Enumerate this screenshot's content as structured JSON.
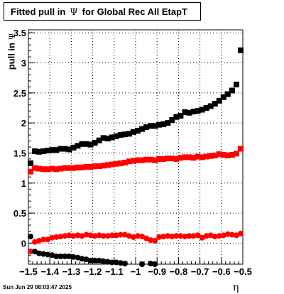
{
  "title": {
    "prefix": "Fitted pull in",
    "symbol": "Ψ",
    "suffix": "for Global Rec All EtapT"
  },
  "axis": {
    "ylabel_text": "pull in",
    "ylabel_symbol": "Ψ",
    "xlabel": "η"
  },
  "timestamp": "Sun Jun 29 08:03:47 2025",
  "colors": {
    "black_series": "#000000",
    "red_series": "#ff0000",
    "grid": "#000000"
  },
  "chart_data": {
    "type": "scatter",
    "title": "Fitted pull in Ψ for Global Rec All EtapT",
    "xlabel": "η",
    "ylabel": "pull in Ψ",
    "xlim": [
      -1.5,
      -0.5
    ],
    "ylim": [
      -0.35,
      3.55
    ],
    "grid": true,
    "xticks": [
      -1.5,
      -1.4,
      -1.3,
      -1.2,
      -1.1,
      -1,
      -0.9,
      -0.8,
      -0.7,
      -0.6,
      -0.5
    ],
    "xtick_labels": [
      "−1.5",
      "−1.4",
      "−1.3",
      "−1.2",
      "−1.1",
      "−1",
      "−0.9",
      "−0.8",
      "−0.7",
      "−0.6",
      "−0.5"
    ],
    "yticks": [
      0,
      0.5,
      1,
      1.5,
      2,
      2.5,
      3,
      3.5
    ],
    "ytick_labels": [
      "0",
      "0.5",
      "1",
      "1.5",
      "2",
      "2.5",
      "3",
      "3.5"
    ],
    "x": [
      -1.49,
      -1.47,
      -1.45,
      -1.43,
      -1.41,
      -1.39,
      -1.37,
      -1.35,
      -1.33,
      -1.31,
      -1.29,
      -1.27,
      -1.25,
      -1.23,
      -1.21,
      -1.19,
      -1.17,
      -1.15,
      -1.13,
      -1.11,
      -1.09,
      -1.07,
      -1.05,
      -1.03,
      -1.01,
      -0.99,
      -0.97,
      -0.95,
      -0.93,
      -0.91,
      -0.89,
      -0.87,
      -0.85,
      -0.83,
      -0.81,
      -0.79,
      -0.77,
      -0.75,
      -0.73,
      -0.71,
      -0.69,
      -0.67,
      -0.65,
      -0.63,
      -0.61,
      -0.59,
      -0.57,
      -0.55,
      -0.53,
      -0.51
    ],
    "series": [
      {
        "marker": "square",
        "color": "#000000",
        "values": [
          1.33,
          1.53,
          1.52,
          1.53,
          1.54,
          1.55,
          1.55,
          1.57,
          1.57,
          1.56,
          1.59,
          1.62,
          1.65,
          1.65,
          1.64,
          1.67,
          1.71,
          1.75,
          1.74,
          1.76,
          1.78,
          1.8,
          1.81,
          1.82,
          1.85,
          1.87,
          1.9,
          1.93,
          1.95,
          1.95,
          1.97,
          1.98,
          2.0,
          2.05,
          2.1,
          2.12,
          2.18,
          2.17,
          2.19,
          2.2,
          2.22,
          2.25,
          2.28,
          2.32,
          2.37,
          2.43,
          2.48,
          2.54,
          2.64,
          3.21
        ]
      },
      {
        "marker": "square",
        "color": "#ff0000",
        "values": [
          1.19,
          1.25,
          1.24,
          1.23,
          1.23,
          1.24,
          1.23,
          1.24,
          1.25,
          1.25,
          1.25,
          1.26,
          1.26,
          1.27,
          1.27,
          1.28,
          1.28,
          1.29,
          1.3,
          1.31,
          1.32,
          1.33,
          1.34,
          1.36,
          1.37,
          1.38,
          1.38,
          1.39,
          1.39,
          1.38,
          1.4,
          1.4,
          1.41,
          1.41,
          1.4,
          1.42,
          1.43,
          1.43,
          1.42,
          1.44,
          1.43,
          1.44,
          1.45,
          1.46,
          1.48,
          1.47,
          1.46,
          1.47,
          1.49,
          1.57
        ]
      },
      {
        "marker": "circle",
        "color": "#ff0000",
        "values": [
          -0.14,
          0.02,
          0.04,
          0.06,
          0.06,
          0.09,
          0.1,
          0.11,
          0.12,
          0.13,
          0.12,
          0.13,
          0.12,
          0.14,
          0.13,
          0.12,
          0.13,
          0.12,
          0.12,
          0.13,
          0.13,
          0.14,
          0.14,
          0.12,
          0.1,
          0.12,
          0.11,
          0.08,
          0.05,
          0.04,
          0.1,
          0.11,
          0.12,
          0.11,
          0.12,
          0.12,
          0.11,
          0.12,
          0.12,
          0.13,
          0.09,
          0.12,
          0.13,
          0.11,
          0.12,
          0.13,
          0.15,
          0.14,
          0.13,
          0.16
        ]
      },
      {
        "marker": "circle",
        "color": "#000000",
        "values": [
          0.11,
          -0.14,
          -0.17,
          -0.18,
          -0.19,
          -0.2,
          -0.22,
          -0.22,
          -0.22,
          -0.22,
          -0.23,
          -0.24,
          -0.26,
          -0.27,
          -0.29,
          -0.29,
          -0.29,
          -0.3,
          -0.31,
          -0.32,
          -0.32,
          -0.33,
          -0.34,
          null,
          null,
          null,
          -0.35,
          null,
          -0.34,
          -0.35,
          null,
          null,
          null,
          null,
          null,
          null,
          null,
          null,
          null,
          null,
          null,
          null,
          null,
          null,
          null,
          null,
          null,
          null,
          null,
          null
        ]
      }
    ]
  }
}
